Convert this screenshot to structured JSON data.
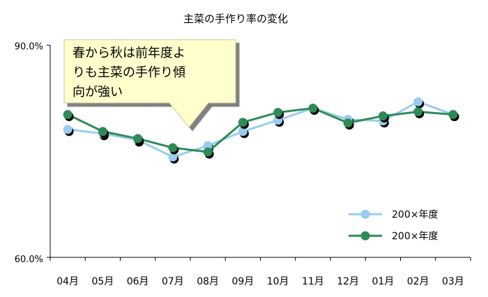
{
  "chart_data": {
    "type": "line",
    "title": "主菜の手作り率の変化",
    "xlabel": "",
    "ylabel": "",
    "categories": [
      "04月",
      "05月",
      "06月",
      "07月",
      "08月",
      "09月",
      "10月",
      "11月",
      "12月",
      "01月",
      "02月",
      "03月"
    ],
    "y_ticks": [
      "90.0%",
      "60.0%"
    ],
    "ylim": [
      60.0,
      90.0
    ],
    "grid": false,
    "legend_position": "bottom-right",
    "series": [
      {
        "name": "200×年度",
        "color": "#99ccee",
        "values": [
          78.1,
          77.5,
          76.6,
          74.2,
          75.8,
          77.8,
          79.4,
          81.1,
          79.5,
          79.3,
          82.0,
          80.2
        ]
      },
      {
        "name": "200×年度",
        "color": "#2e8b57",
        "values": [
          80.2,
          77.8,
          76.8,
          75.5,
          74.9,
          79.1,
          80.5,
          81.1,
          79.0,
          80.0,
          80.6,
          80.2
        ]
      }
    ],
    "annotation": {
      "lines": [
        "春から秋は前年度よ",
        "りも主菜の手作り傾",
        "向が強い"
      ],
      "fill": "#ffffcc"
    }
  }
}
